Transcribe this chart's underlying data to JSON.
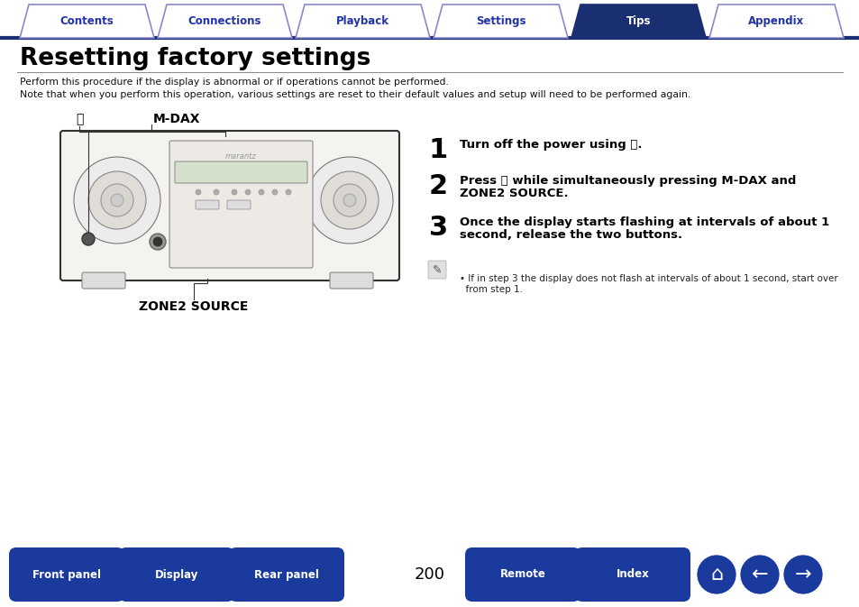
{
  "title": "Resetting factory settings",
  "subtitle_line1": "Perform this procedure if the display is abnormal or if operations cannot be performed.",
  "subtitle_line2": "Note that when you perform this operation, various settings are reset to their default values and setup will need to be performed again.",
  "tab_labels": [
    "Contents",
    "Connections",
    "Playback",
    "Settings",
    "Tips",
    "Appendix"
  ],
  "active_tab": 4,
  "tab_color_active": "#1a2e72",
  "tab_color_inactive_fill": "#ffffff",
  "tab_color_inactive_border": "#8888cc",
  "tab_text_active": "#ffffff",
  "tab_text_inactive": "#2233aa",
  "bottom_buttons": [
    "Front panel",
    "Display",
    "Rear panel",
    "Remote",
    "Index"
  ],
  "bottom_button_color": "#1a3a9e",
  "bottom_button_text": "#ffffff",
  "page_number": "200",
  "step1_num": "1",
  "step1_text": "Turn off the power using ⏻.",
  "step2_num": "2",
  "step2_line1": "Press ⏻ while simultaneously pressing M-DAX and",
  "step2_line2": "ZONE2 SOURCE.",
  "step3_num": "3",
  "step3_line1": "Once the display starts flashing at intervals of about 1",
  "step3_line2": "second, release the two buttons.",
  "note_line1": "• If in step 3 the display does not flash at intervals of about 1 second, start over",
  "note_line2": "  from step 1.",
  "label_power": "⏻",
  "label_mdax": "M-DAX",
  "label_zone2": "ZONE2 SOURCE",
  "bg_color": "#ffffff",
  "header_line_color": "#1a2e72"
}
